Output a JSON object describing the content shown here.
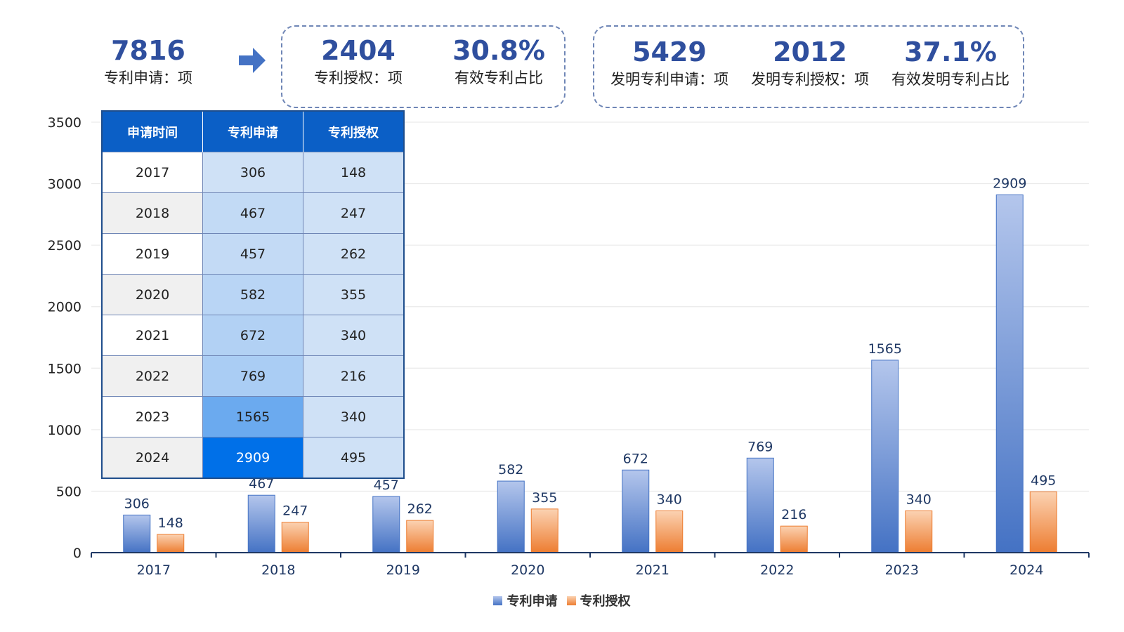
{
  "header": {
    "total": {
      "value": "7816",
      "label": "专利申请：项"
    },
    "group1": [
      {
        "value": "2404",
        "label": "专利授权：项"
      },
      {
        "value": "30.8%",
        "label": "有效专利占比"
      }
    ],
    "group2": [
      {
        "value": "5429",
        "label": "发明专利申请：项"
      },
      {
        "value": "2012",
        "label": "发明专利授权：项"
      },
      {
        "value": "37.1%",
        "label": "有效发明专利占比"
      }
    ]
  },
  "table": {
    "headers": [
      "申请时间",
      "专利申请",
      "专利授权"
    ],
    "rows": [
      [
        "2017",
        "306",
        "148"
      ],
      [
        "2018",
        "467",
        "247"
      ],
      [
        "2019",
        "457",
        "262"
      ],
      [
        "2020",
        "582",
        "355"
      ],
      [
        "2021",
        "672",
        "340"
      ],
      [
        "2022",
        "769",
        "216"
      ],
      [
        "2023",
        "1565",
        "340"
      ],
      [
        "2024",
        "2909",
        "495"
      ]
    ]
  },
  "legend": [
    "专利申请",
    "专利授权"
  ],
  "colors": {
    "application_top": "#b4c6ec",
    "application_bottom": "#4472c4",
    "grant_top": "#fbd2b2",
    "grant_bottom": "#ed7d31",
    "accent": "#2f4f9e",
    "table_header": "#0b5fc6"
  },
  "chart_data": {
    "type": "bar",
    "categories": [
      "2017",
      "2018",
      "2019",
      "2020",
      "2021",
      "2022",
      "2023",
      "2024"
    ],
    "series": [
      {
        "name": "专利申请",
        "values": [
          306,
          467,
          457,
          582,
          672,
          769,
          1565,
          2909
        ]
      },
      {
        "name": "专利授权",
        "values": [
          148,
          247,
          262,
          355,
          340,
          216,
          340,
          495
        ]
      }
    ],
    "yticks": [
      0,
      500,
      1000,
      1500,
      2000,
      2500,
      3000,
      3500
    ],
    "ylim": [
      0,
      3500
    ],
    "grid": true,
    "legend_position": "bottom"
  }
}
